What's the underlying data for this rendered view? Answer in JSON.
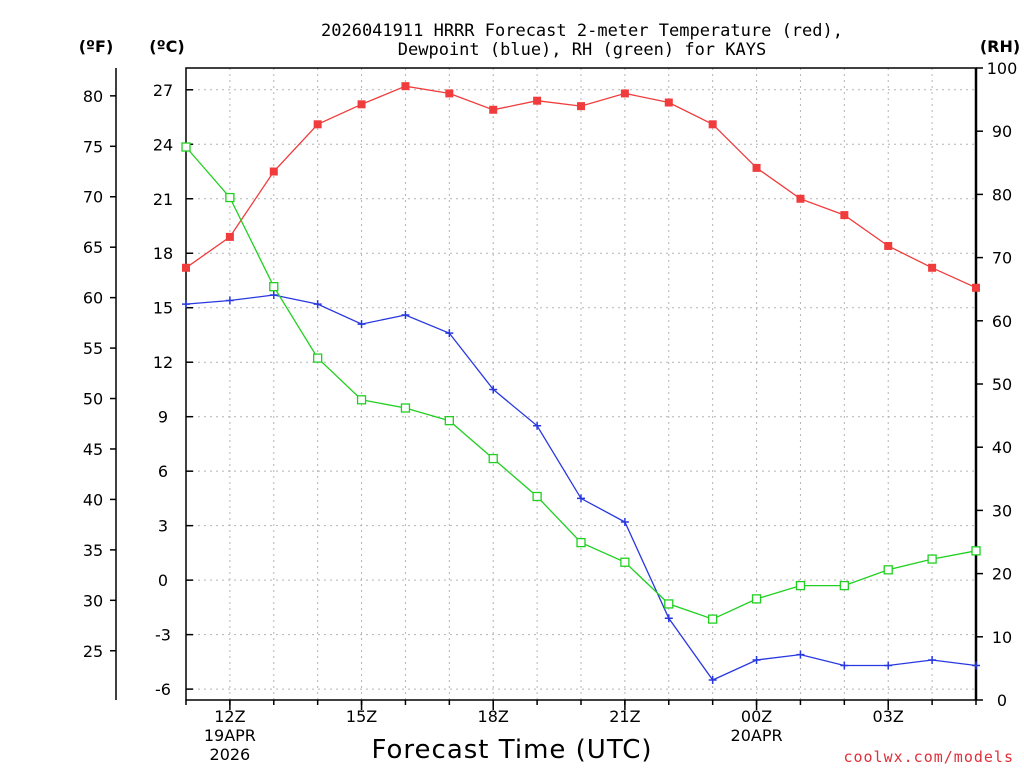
{
  "title_line1": "2026041911 HRRR Forecast 2-meter Temperature (red),",
  "title_line2": "Dewpoint (blue), RH (green) for KAYS",
  "units": {
    "fahrenheit": "(ºF)",
    "celsius": "(ºC)",
    "rh": "(RH)"
  },
  "xlabel": "Forecast Time (UTC)",
  "credit": "coolwx.com/models",
  "colors": {
    "temperature": "#f03c3c",
    "dewpoint": "#2838e0",
    "rh": "#20d020",
    "grid": "#b4b4b4",
    "credit": "#e0303a"
  },
  "chart_data": {
    "type": "line",
    "x_hours_utc": [
      11,
      12,
      13,
      14,
      15,
      16,
      17,
      18,
      19,
      20,
      21,
      22,
      23,
      24,
      25,
      26,
      27,
      28,
      29
    ],
    "x_ticks": [
      {
        "hour": 12,
        "label": "12Z",
        "sub1": "19APR",
        "sub2": "2026"
      },
      {
        "hour": 15,
        "label": "15Z",
        "sub1": "",
        "sub2": ""
      },
      {
        "hour": 18,
        "label": "18Z",
        "sub1": "",
        "sub2": ""
      },
      {
        "hour": 21,
        "label": "21Z",
        "sub1": "",
        "sub2": ""
      },
      {
        "hour": 24,
        "label": "00Z",
        "sub1": "20APR",
        "sub2": ""
      },
      {
        "hour": 27,
        "label": "03Z",
        "sub1": "",
        "sub2": ""
      }
    ],
    "xlim": [
      11,
      29
    ],
    "celsius_axis": {
      "ylim": [
        -6.6,
        28.2
      ],
      "ticks": [
        -6,
        -3,
        0,
        3,
        6,
        9,
        12,
        15,
        18,
        21,
        24,
        27
      ]
    },
    "fahrenheit_axis": {
      "ticks": [
        25,
        30,
        35,
        40,
        45,
        50,
        55,
        60,
        65,
        70,
        75,
        80
      ]
    },
    "rh_axis": {
      "ylim": [
        0,
        100
      ],
      "ticks": [
        0,
        10,
        20,
        30,
        40,
        50,
        60,
        70,
        80,
        90,
        100
      ]
    },
    "series": [
      {
        "name": "Temperature",
        "axis": "celsius",
        "marker": "filled-square",
        "color": "#f03c3c",
        "values": [
          17.2,
          18.9,
          22.5,
          25.1,
          26.2,
          27.2,
          26.8,
          25.9,
          26.4,
          26.1,
          26.8,
          26.3,
          25.1,
          22.7,
          21.0,
          20.1,
          18.4,
          17.2,
          16.1
        ]
      },
      {
        "name": "Dewpoint",
        "axis": "celsius",
        "marker": "plus",
        "color": "#2838e0",
        "values": [
          15.2,
          15.4,
          15.7,
          15.2,
          14.1,
          14.6,
          13.6,
          10.5,
          8.5,
          4.5,
          3.2,
          -2.1,
          -5.5,
          -4.4,
          -4.1,
          -4.7,
          -4.7,
          -4.4,
          -4.7
        ]
      },
      {
        "name": "RH",
        "axis": "rh",
        "marker": "open-square",
        "color": "#20d020",
        "values": [
          87.5,
          79.5,
          65.4,
          54.1,
          47.5,
          46.2,
          44.2,
          38.2,
          32.2,
          24.9,
          21.8,
          15.2,
          12.8,
          16.0,
          18.1,
          18.1,
          20.6,
          22.3,
          23.6
        ]
      }
    ]
  }
}
